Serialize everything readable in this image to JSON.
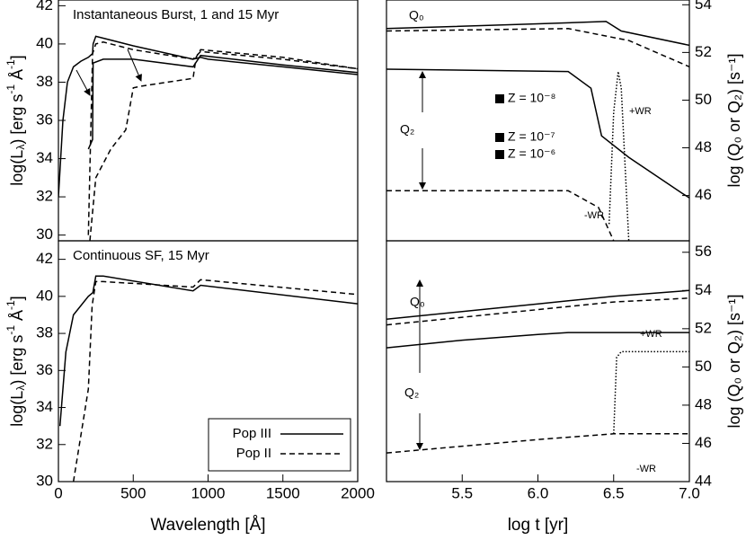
{
  "chart_data": [
    {
      "type": "line",
      "title": "Instantaneous Burst, 1 and 15 Myr",
      "ylabel": [
        {
          "t": "log(L"
        },
        {
          "t": "λ",
          "s": "sub"
        },
        {
          "t": ") [erg s"
        },
        {
          "t": "-1",
          "s": "sup"
        },
        {
          "t": " Å"
        },
        {
          "t": "-1",
          "s": "sup"
        },
        {
          "t": "]"
        }
      ],
      "xlim": [
        0,
        2000
      ],
      "ylim": [
        29.7,
        42.3
      ],
      "yticks": [
        30,
        32,
        34,
        36,
        38,
        40,
        42
      ],
      "series": [
        {
          "color": "#000",
          "dash": "solid",
          "x": [
            0,
            30,
            60,
            100,
            150,
            200,
            228,
            232,
            250,
            300,
            500,
            900,
            950,
            1000,
            1500,
            2000
          ],
          "values": [
            32,
            36,
            38,
            38.8,
            39.1,
            39.3,
            39.5,
            40.0,
            40.4,
            40.3,
            39.9,
            39.2,
            39.3,
            39.2,
            38.8,
            38.4
          ]
        },
        {
          "color": "#000",
          "dash": "solid",
          "x": [
            200,
            228,
            232,
            300,
            500,
            900,
            950,
            1500,
            2000
          ],
          "values": [
            34.5,
            35,
            39.0,
            39.2,
            39.2,
            38.8,
            39.4,
            38.9,
            38.5
          ]
        },
        {
          "color": "#000",
          "dash": "dashed",
          "x": [
            200,
            228,
            250,
            300,
            500,
            900,
            950,
            1500,
            2000
          ],
          "values": [
            30,
            39.5,
            40,
            40.1,
            39.7,
            39.2,
            39.6,
            39.2,
            38.7
          ]
        },
        {
          "color": "#000",
          "dash": "dashed",
          "x": [
            210,
            250,
            350,
            450,
            500,
            560,
            900,
            920,
            950,
            1500,
            2000
          ],
          "values": [
            29.7,
            33,
            34.5,
            35.5,
            37.7,
            37.8,
            38.2,
            39.3,
            39.7,
            39.3,
            38.7
          ]
        }
      ]
    },
    {
      "type": "line",
      "ylabel_right": "log (Q₀ or Q₂) [s⁻¹]",
      "xlim": [
        5.0,
        7.0
      ],
      "ylim": [
        44.1,
        54.2
      ],
      "yticks": [
        46,
        48,
        50,
        52,
        54
      ],
      "annotations": [
        "Q₀",
        "Q₂",
        "Z = 10⁻⁸",
        "Z = 10⁻⁷",
        "Z = 10⁻⁶",
        "+WR",
        "-WR"
      ],
      "series": [
        {
          "color": "#000",
          "dash": "solid",
          "x": [
            5.0,
            6.0,
            6.45,
            6.55,
            7.0
          ],
          "values": [
            53.0,
            53.2,
            53.3,
            52.9,
            52.3
          ]
        },
        {
          "color": "#000",
          "dash": "dashed",
          "x": [
            5.0,
            6.2,
            6.6,
            7.0
          ],
          "values": [
            52.9,
            53.0,
            52.5,
            51.4
          ]
        },
        {
          "color": "#000",
          "dash": "solid",
          "x": [
            5.0,
            6.2,
            6.35,
            6.42,
            6.6,
            6.95,
            7.0
          ],
          "values": [
            51.3,
            51.2,
            50.5,
            48.5,
            47.6,
            46.1,
            45.9
          ]
        },
        {
          "color": "#000",
          "dash": "dashed",
          "x": [
            5.0,
            6.2,
            6.4,
            6.5
          ],
          "values": [
            46.2,
            46.2,
            45.5,
            44.1
          ]
        },
        {
          "color": "#000",
          "dash": "dotted",
          "x": [
            6.47,
            6.5,
            6.53,
            6.55,
            6.6
          ],
          "values": [
            44.8,
            49.5,
            51.2,
            50.5,
            44.1
          ]
        }
      ]
    },
    {
      "type": "line",
      "title": "Continuous SF, 15 Myr",
      "xlabel": "Wavelength [Å]",
      "ylabel": [
        {
          "t": "log(L"
        },
        {
          "t": "λ",
          "s": "sub"
        },
        {
          "t": ") [erg s"
        },
        {
          "t": "-1",
          "s": "sup"
        },
        {
          "t": " Å"
        },
        {
          "t": "-1",
          "s": "sup"
        },
        {
          "t": "]"
        }
      ],
      "xlim": [
        0,
        2000
      ],
      "ylim": [
        30,
        43
      ],
      "xticks": [
        0,
        500,
        1000,
        1500,
        2000
      ],
      "yticks": [
        30,
        32,
        34,
        36,
        38,
        40,
        42
      ],
      "legend": "lower right",
      "series": [
        {
          "name": "Pop III",
          "color": "#000",
          "dash": "solid",
          "x": [
            10,
            50,
            100,
            200,
            230,
            250,
            300,
            900,
            950,
            2000
          ],
          "values": [
            33,
            37,
            39,
            40,
            40.2,
            41.1,
            41.1,
            40.3,
            40.6,
            39.6
          ]
        },
        {
          "name": "Pop II",
          "color": "#000",
          "dash": "dashed",
          "x": [
            100,
            200,
            225,
            250,
            300,
            900,
            950,
            2000
          ],
          "values": [
            30,
            35,
            39.5,
            40.8,
            40.8,
            40.5,
            40.9,
            40.1
          ]
        }
      ]
    },
    {
      "type": "line",
      "xlabel": "log t [yr]",
      "ylabel_right": "log (Q₀ or Q₂) [s⁻¹]",
      "xlim": [
        5.0,
        7.0
      ],
      "ylim": [
        44,
        56.6
      ],
      "xticks": [
        5.5,
        {
          "value": 6.0,
          "label": "6.0"
        },
        6.5,
        {
          "value": 7.0,
          "label": "7.0"
        }
      ],
      "yticks": [
        44,
        46,
        48,
        50,
        52,
        54,
        56
      ],
      "annotations": [
        "Q₀",
        "Q₂",
        "+WR",
        "-WR"
      ],
      "series": [
        {
          "color": "#000",
          "dash": "solid",
          "x": [
            5.0,
            6.0,
            6.5,
            7.0
          ],
          "values": [
            52.5,
            53.3,
            53.7,
            54.0
          ]
        },
        {
          "color": "#000",
          "dash": "dashed",
          "x": [
            5.0,
            6.0,
            6.5,
            7.0
          ],
          "values": [
            52.2,
            53.0,
            53.4,
            53.6
          ]
        },
        {
          "color": "#000",
          "dash": "solid",
          "x": [
            5.0,
            5.5,
            6.0,
            6.2,
            7.0
          ],
          "values": [
            51.0,
            51.4,
            51.7,
            51.8,
            51.8
          ]
        },
        {
          "color": "#000",
          "dash": "dashed",
          "x": [
            5.0,
            6.0,
            6.5,
            7.0
          ],
          "values": [
            45.5,
            46.2,
            46.5,
            46.5
          ]
        },
        {
          "color": "#000",
          "dash": "dotted",
          "x": [
            6.5,
            6.52,
            6.55,
            7.0
          ],
          "values": [
            46.5,
            50.5,
            50.8,
            50.8
          ]
        }
      ]
    }
  ]
}
